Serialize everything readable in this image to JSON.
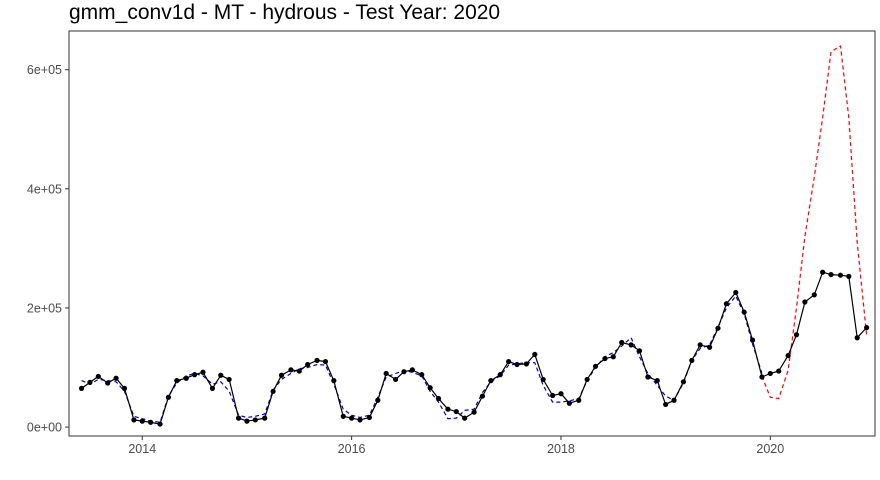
{
  "chart_data": {
    "type": "line",
    "title": "gmm_conv1d - MT - hydrous - Test Year: 2020",
    "xlabel": "",
    "ylabel": "",
    "xlim": [
      2013.3,
      2021.0
    ],
    "ylim": [
      -15000,
      665000
    ],
    "x_ticks": [
      2014,
      2016,
      2018,
      2020
    ],
    "x_tick_labels": [
      "2014",
      "2016",
      "2018",
      "2020"
    ],
    "y_ticks": [
      0,
      200000,
      400000,
      600000
    ],
    "y_tick_labels": [
      "0e+00",
      "2e+05",
      "4e+05",
      "6e+05"
    ],
    "grid": false,
    "legend": "none",
    "series": [
      {
        "style": "solid-with-points",
        "color": "#000000",
        "x": [
          2013.42,
          2013.5,
          2013.58,
          2013.67,
          2013.75,
          2013.83,
          2013.92,
          2014.0,
          2014.08,
          2014.17,
          2014.25,
          2014.33,
          2014.42,
          2014.5,
          2014.58,
          2014.67,
          2014.75,
          2014.83,
          2014.92,
          2015.0,
          2015.08,
          2015.17,
          2015.25,
          2015.33,
          2015.42,
          2015.5,
          2015.58,
          2015.67,
          2015.75,
          2015.83,
          2015.92,
          2016.0,
          2016.08,
          2016.17,
          2016.25,
          2016.33,
          2016.42,
          2016.5,
          2016.58,
          2016.67,
          2016.75,
          2016.83,
          2016.92,
          2017.0,
          2017.08,
          2017.17,
          2017.25,
          2017.33,
          2017.42,
          2017.5,
          2017.58,
          2017.67,
          2017.75,
          2017.83,
          2017.92,
          2018.0,
          2018.08,
          2018.17,
          2018.25,
          2018.33,
          2018.42,
          2018.5,
          2018.58,
          2018.67,
          2018.75,
          2018.83,
          2018.92,
          2019.0,
          2019.08,
          2019.17,
          2019.25,
          2019.33,
          2019.42,
          2019.5,
          2019.58,
          2019.67,
          2019.75,
          2019.83,
          2019.92,
          2020.0,
          2020.08,
          2020.17,
          2020.25,
          2020.33,
          2020.42,
          2020.5,
          2020.58,
          2020.67,
          2020.75,
          2020.83,
          2020.92
        ],
        "y": [
          65000,
          75000,
          85000,
          74000,
          82000,
          65000,
          12000,
          10000,
          8000,
          5000,
          50000,
          78000,
          82000,
          88000,
          92000,
          65000,
          87000,
          80000,
          15000,
          10000,
          12000,
          15000,
          60000,
          87000,
          96000,
          94000,
          105000,
          112000,
          110000,
          78000,
          18000,
          15000,
          12000,
          16000,
          45000,
          90000,
          80000,
          93000,
          96000,
          88000,
          66000,
          48000,
          30000,
          26000,
          15000,
          25000,
          52000,
          78000,
          88000,
          110000,
          105000,
          106000,
          122000,
          80000,
          53000,
          56000,
          40000,
          45000,
          80000,
          102000,
          115000,
          118000,
          142000,
          138000,
          128000,
          84000,
          78000,
          38000,
          45000,
          76000,
          112000,
          138000,
          134000,
          166000,
          207000,
          226000,
          193000,
          146000,
          84000,
          90000,
          94000,
          120000,
          155000,
          210000,
          222000,
          260000,
          256000,
          255000,
          253000,
          150000,
          167000
        ]
      },
      {
        "style": "dashed",
        "color": "#0000cc",
        "x": [
          2013.42,
          2013.5,
          2013.58,
          2013.67,
          2013.75,
          2013.83,
          2013.92,
          2014.0,
          2014.08,
          2014.17,
          2014.25,
          2014.33,
          2014.42,
          2014.5,
          2014.58,
          2014.67,
          2014.75,
          2014.83,
          2014.92,
          2015.0,
          2015.08,
          2015.17,
          2015.25,
          2015.33,
          2015.42,
          2015.5,
          2015.58,
          2015.67,
          2015.75,
          2015.83,
          2015.92,
          2016.0,
          2016.08,
          2016.17,
          2016.25,
          2016.33,
          2016.42,
          2016.5,
          2016.58,
          2016.67,
          2016.75,
          2016.83,
          2016.92,
          2017.0,
          2017.08,
          2017.17,
          2017.25,
          2017.33,
          2017.42,
          2017.5,
          2017.58,
          2017.67,
          2017.75,
          2017.83,
          2017.92,
          2018.0,
          2018.08,
          2018.17,
          2018.25,
          2018.33,
          2018.42,
          2018.5,
          2018.58,
          2018.67,
          2018.75,
          2018.83,
          2018.92,
          2019.0,
          2019.08,
          2019.17,
          2019.25,
          2019.33,
          2019.42,
          2019.5,
          2019.58,
          2019.67,
          2019.75,
          2019.83,
          2019.92
        ],
        "y": [
          78000,
          72000,
          80000,
          78000,
          76000,
          60000,
          18000,
          14000,
          10000,
          8000,
          52000,
          74000,
          86000,
          90000,
          86000,
          72000,
          76000,
          60000,
          20000,
          16000,
          18000,
          22000,
          62000,
          80000,
          90000,
          98000,
          100000,
          105000,
          104000,
          72000,
          30000,
          20000,
          16000,
          20000,
          50000,
          84000,
          90000,
          95000,
          92000,
          86000,
          60000,
          42000,
          14000,
          15000,
          28000,
          30000,
          58000,
          76000,
          86000,
          104000,
          106000,
          108000,
          108000,
          70000,
          42000,
          42000,
          44000,
          48000,
          78000,
          100000,
          118000,
          125000,
          136000,
          150000,
          118000,
          90000,
          70000,
          52000,
          45000,
          74000,
          112000,
          132000,
          138000,
          168000,
          200000,
          220000,
          190000,
          140000,
          90000
        ]
      },
      {
        "style": "dashed",
        "color": "#ff0000",
        "x": [
          2019.92,
          2020.0,
          2020.08,
          2020.17,
          2020.25,
          2020.33,
          2020.42,
          2020.5,
          2020.58,
          2020.67,
          2020.75,
          2020.83,
          2020.92
        ],
        "y": [
          85000,
          50000,
          48000,
          95000,
          200000,
          320000,
          420000,
          520000,
          630000,
          640000,
          520000,
          310000,
          155000
        ]
      }
    ]
  }
}
